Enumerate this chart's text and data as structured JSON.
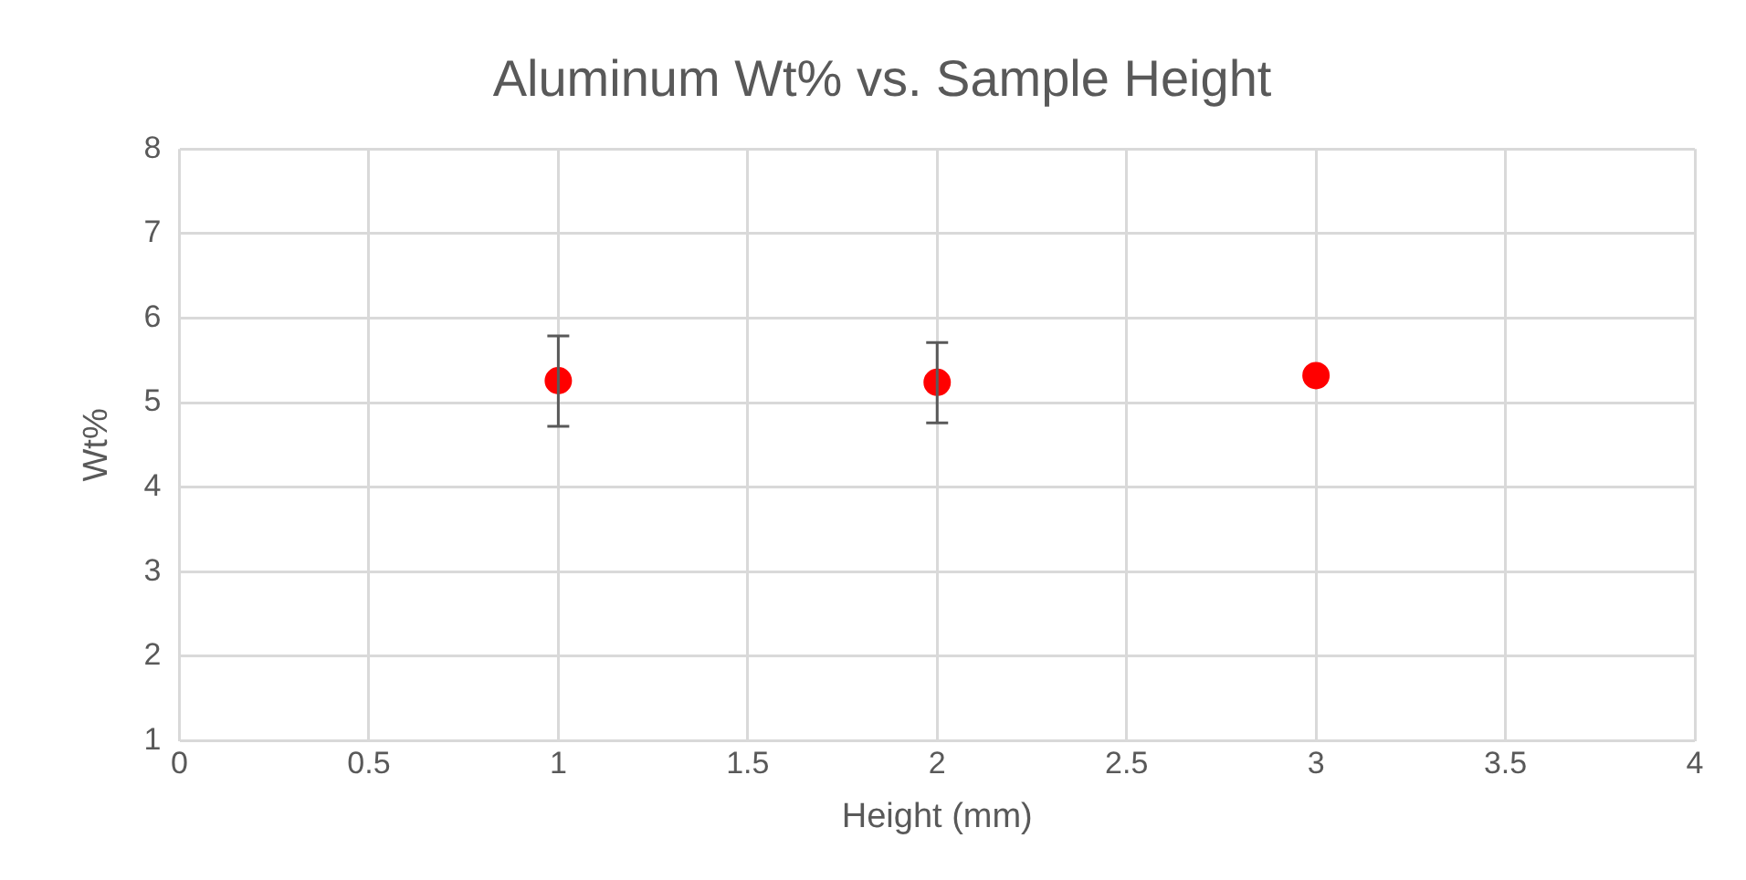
{
  "chart_data": {
    "type": "scatter",
    "title": "Aluminum Wt% vs. Sample Height",
    "xlabel": "Height (mm)",
    "ylabel": "Wt%",
    "x": [
      1,
      2,
      3
    ],
    "values": [
      5.26,
      5.24,
      5.32
    ],
    "color": "#ff0000",
    "errors": [
      [
        4.72,
        5.79
      ],
      [
        4.76,
        5.71
      ],
      null
    ],
    "xlim": [
      0,
      4
    ],
    "xticks": [
      0,
      0.5,
      1,
      1.5,
      2,
      2.5,
      3,
      3.5,
      4
    ],
    "ylim": [
      1,
      8
    ],
    "yticks": [
      1,
      2,
      3,
      4,
      5,
      6,
      7,
      8
    ],
    "grid": true,
    "legend": false,
    "marker": "circle"
  }
}
